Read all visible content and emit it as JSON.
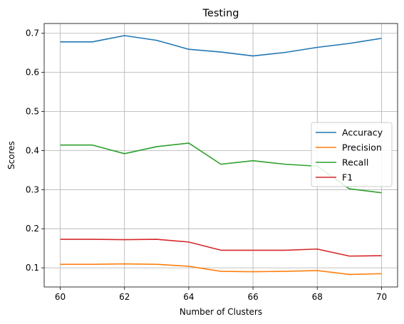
{
  "chart_data": {
    "type": "line",
    "title": "Testing",
    "xlabel": "Number of Clusters",
    "ylabel": "Scores",
    "x": [
      60,
      61,
      62,
      63,
      64,
      65,
      66,
      67,
      68,
      69,
      70
    ],
    "xlim": [
      59.5,
      70.5
    ],
    "ylim": [
      0.051,
      0.725
    ],
    "xticks": [
      60,
      62,
      64,
      66,
      68,
      70
    ],
    "xtick_labels": [
      "60",
      "62",
      "64",
      "66",
      "68",
      "70"
    ],
    "yticks": [
      0.1,
      0.2,
      0.3,
      0.4,
      0.5,
      0.6,
      0.7
    ],
    "ytick_labels": [
      "0.1",
      "0.2",
      "0.3",
      "0.4",
      "0.5",
      "0.6",
      "0.7"
    ],
    "grid": true,
    "legend_position": "center-right",
    "series": [
      {
        "name": "Accuracy",
        "color": "#1f77b4",
        "values": [
          0.678,
          0.678,
          0.694,
          0.682,
          0.659,
          0.652,
          0.642,
          0.651,
          0.664,
          0.674,
          0.687
        ]
      },
      {
        "name": "Precision",
        "color": "#ff7f0e",
        "values": [
          0.109,
          0.109,
          0.11,
          0.109,
          0.104,
          0.091,
          0.09,
          0.091,
          0.093,
          0.083,
          0.085
        ]
      },
      {
        "name": "Recall",
        "color": "#2ca02c",
        "values": [
          0.414,
          0.414,
          0.392,
          0.41,
          0.419,
          0.365,
          0.374,
          0.365,
          0.36,
          0.302,
          0.292
        ]
      },
      {
        "name": "F1",
        "color": "#d62728",
        "values": [
          0.173,
          0.173,
          0.172,
          0.173,
          0.166,
          0.145,
          0.145,
          0.145,
          0.148,
          0.13,
          0.131
        ]
      }
    ]
  }
}
